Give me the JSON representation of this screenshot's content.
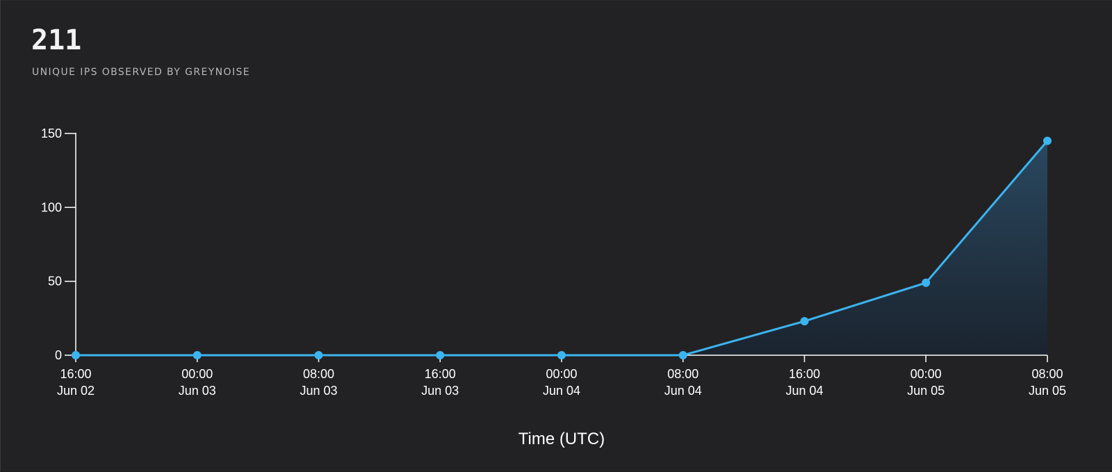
{
  "stat": {
    "value": "211",
    "label": "UNIQUE IPS OBSERVED BY GREYNOISE"
  },
  "chart_data": {
    "type": "area",
    "x": [
      [
        "16:00",
        "Jun 02"
      ],
      [
        "00:00",
        "Jun 03"
      ],
      [
        "08:00",
        "Jun 03"
      ],
      [
        "16:00",
        "Jun 03"
      ],
      [
        "00:00",
        "Jun 04"
      ],
      [
        "08:00",
        "Jun 04"
      ],
      [
        "16:00",
        "Jun 04"
      ],
      [
        "00:00",
        "Jun 05"
      ],
      [
        "08:00",
        "Jun 05"
      ]
    ],
    "series": [
      {
        "values": [
          0,
          0,
          0,
          0,
          0,
          0,
          23,
          49,
          145
        ]
      }
    ],
    "yticks": [
      0,
      50,
      100,
      150
    ],
    "ylim": [
      0,
      150
    ],
    "xlabel": "Time (UTC)",
    "ylabel": "",
    "grid": false,
    "colors": {
      "line": "#3cb4f0",
      "fill_top": "#2a4a63",
      "fill_bottom": "#1a2430",
      "axis": "#ffffff"
    }
  }
}
